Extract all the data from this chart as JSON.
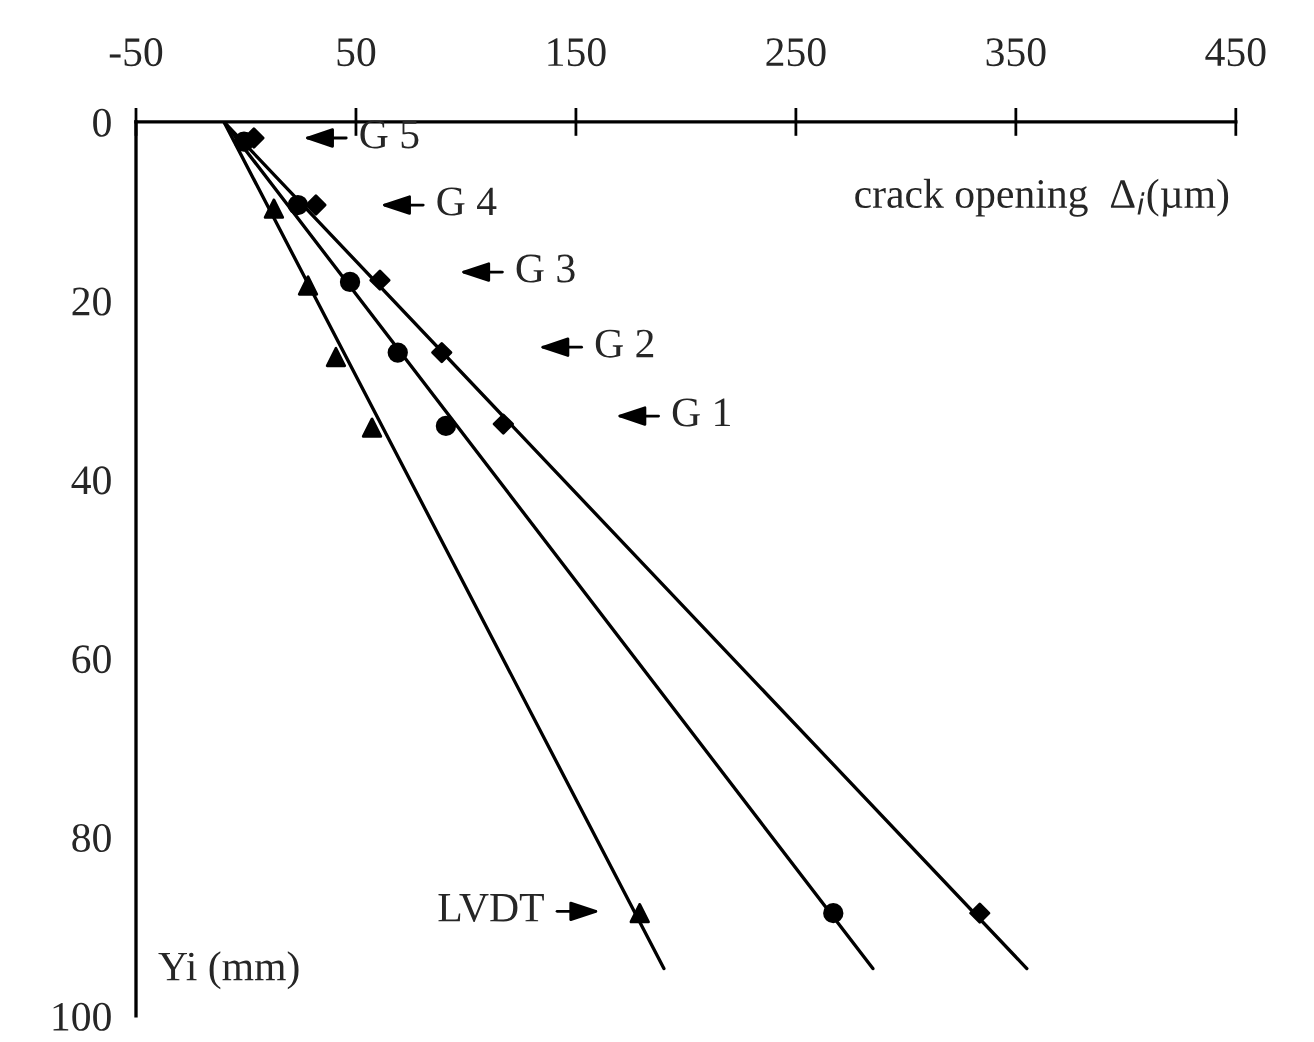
{
  "chart_data": {
    "type": "scatter",
    "xlabel": "crack opening  Δ$_{i}$(µm)",
    "ylabel": "Yi (mm)",
    "xlim": [
      -50,
      450
    ],
    "xticks": [
      -50,
      50,
      150,
      250,
      350,
      450
    ],
    "ylim": [
      100,
      0
    ],
    "yticks": [
      0,
      20,
      40,
      60,
      80,
      100
    ],
    "grid": false,
    "legend": false,
    "series": [
      {
        "marker": "triangle",
        "color": "#000000",
        "x": [
          null,
          12.7,
          28.2,
          40.9,
          57.3,
          179
        ],
        "values": [
          null,
          9.7,
          18.3,
          26.3,
          34.2,
          88.5
        ]
      },
      {
        "marker": "circle",
        "color": "#000000",
        "x": [
          -0.9,
          23.6,
          47.3,
          69,
          90.9,
          267
        ],
        "values": [
          2.2,
          9.3,
          17.9,
          25.8,
          34,
          88.5
        ]
      },
      {
        "marker": "diamond",
        "color": "#000000",
        "x": [
          3.6,
          31.8,
          60.9,
          89,
          117,
          333.6
        ],
        "values": [
          1.8,
          9.3,
          17.7,
          25.8,
          33.8,
          88.5
        ]
      },
      {
        "type": "line",
        "marker": "none",
        "line_style": "solid",
        "color": "#000000",
        "x": [
          -10,
          190
        ],
        "values": [
          0,
          94.7
        ]
      },
      {
        "type": "line",
        "marker": "none",
        "line_style": "solid",
        "color": "#000000",
        "x": [
          -10,
          285
        ],
        "values": [
          0,
          94.7
        ]
      },
      {
        "type": "line",
        "marker": "none",
        "line_style": "solid",
        "color": "#000000",
        "x": [
          -10,
          355
        ],
        "values": [
          0,
          94.7
        ]
      }
    ],
    "annotations": [
      "G 5",
      "G 4",
      "G 3",
      "G 2",
      "G 1",
      "LVDT"
    ]
  }
}
